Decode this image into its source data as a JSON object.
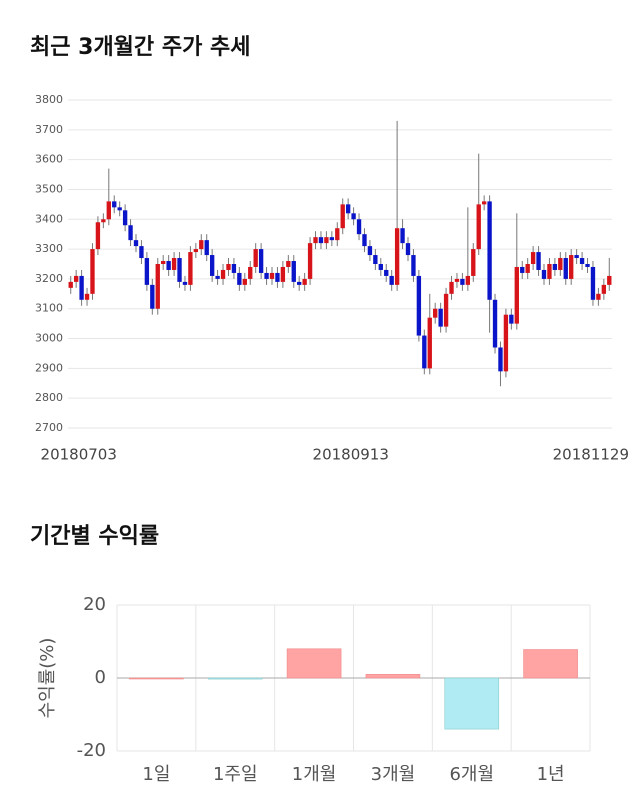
{
  "chart_data": [
    {
      "type": "candlestick",
      "title": "최근 3개월간 주가 추세",
      "categories": [
        "20180703",
        null,
        null,
        null,
        null,
        null,
        null,
        null,
        null,
        null,
        null,
        null,
        null,
        null,
        null,
        null,
        null,
        null,
        null,
        null,
        null,
        null,
        null,
        null,
        null,
        null,
        null,
        null,
        null,
        null,
        null,
        null,
        null,
        null,
        null,
        null,
        null,
        null,
        null,
        null,
        null,
        null,
        null,
        null,
        null,
        null,
        null,
        null,
        null,
        null,
        "20180913",
        null,
        null,
        null,
        null,
        null,
        null,
        null,
        null,
        null,
        null,
        null,
        null,
        null,
        null,
        null,
        null,
        null,
        null,
        null,
        null,
        null,
        null,
        null,
        null,
        null,
        null,
        null,
        null,
        null,
        null,
        null,
        null,
        null,
        null,
        null,
        null,
        null,
        null,
        null,
        null,
        null,
        null,
        null,
        null,
        null,
        null,
        null,
        null,
        "20181129"
      ],
      "open": [
        3170,
        3190,
        3210,
        3130,
        3150,
        3300,
        3390,
        3400,
        3460,
        3440,
        3430,
        3380,
        3330,
        3310,
        3270,
        3180,
        3100,
        3250,
        3260,
        3230,
        3270,
        3190,
        3180,
        3290,
        3300,
        3330,
        3280,
        3210,
        3200,
        3230,
        3250,
        3220,
        3180,
        3200,
        3240,
        3300,
        3220,
        3200,
        3220,
        3190,
        3240,
        3260,
        3190,
        3180,
        3200,
        3320,
        3340,
        3320,
        3340,
        3330,
        3370,
        3450,
        3420,
        3400,
        3350,
        3310,
        3280,
        3250,
        3230,
        3210,
        3180,
        3370,
        3320,
        3280,
        3210,
        3010,
        2900,
        3070,
        3100,
        3040,
        3150,
        3190,
        3200,
        3180,
        3210,
        3300,
        3450,
        3460,
        3130,
        2970,
        2890,
        3080,
        3050,
        3240,
        3220,
        3250,
        3290,
        3230,
        3200,
        3250,
        3230,
        3270,
        3200,
        3280,
        3270,
        3250,
        3240,
        3130,
        3150,
        3180
      ],
      "high": [
        3210,
        3230,
        3230,
        3170,
        3320,
        3410,
        3420,
        3570,
        3480,
        3460,
        3450,
        3400,
        3350,
        3330,
        3290,
        3200,
        3270,
        3280,
        3280,
        3290,
        3290,
        3210,
        3310,
        3320,
        3350,
        3350,
        3300,
        3230,
        3250,
        3270,
        3270,
        3240,
        3220,
        3260,
        3320,
        3320,
        3240,
        3240,
        3240,
        3260,
        3280,
        3280,
        3210,
        3220,
        3340,
        3360,
        3360,
        3360,
        3360,
        3390,
        3470,
        3470,
        3440,
        3420,
        3370,
        3330,
        3300,
        3270,
        3250,
        3230,
        3730,
        3400,
        3340,
        3300,
        3230,
        3030,
        3150,
        3120,
        3120,
        3170,
        3210,
        3220,
        3220,
        3440,
        3320,
        3620,
        3480,
        3480,
        3150,
        2990,
        3100,
        3100,
        3420,
        3260,
        3270,
        3310,
        3310,
        3250,
        3270,
        3270,
        3290,
        3290,
        3300,
        3300,
        3290,
        3270,
        3260,
        3170,
        3200,
        3270
      ],
      "low": [
        3150,
        3170,
        3110,
        3110,
        3130,
        3280,
        3370,
        3380,
        3420,
        3410,
        3360,
        3310,
        3290,
        3250,
        3160,
        3080,
        3080,
        3230,
        3210,
        3210,
        3170,
        3160,
        3160,
        3270,
        3280,
        3260,
        3190,
        3180,
        3180,
        3210,
        3200,
        3160,
        3160,
        3180,
        3220,
        3200,
        3180,
        3180,
        3170,
        3170,
        3220,
        3170,
        3160,
        3160,
        3180,
        3300,
        3300,
        3300,
        3310,
        3310,
        3350,
        3400,
        3380,
        3330,
        3290,
        3260,
        3230,
        3210,
        3190,
        3160,
        3160,
        3300,
        3260,
        3190,
        2990,
        2880,
        2880,
        3050,
        3020,
        3020,
        3130,
        3170,
        3160,
        3160,
        3190,
        3280,
        3430,
        3020,
        2950,
        2840,
        2870,
        3030,
        3030,
        3200,
        3200,
        3230,
        3210,
        3180,
        3180,
        3210,
        3210,
        3180,
        3180,
        3250,
        3230,
        3220,
        3110,
        3110,
        3130,
        3160
      ],
      "close": [
        3190,
        3210,
        3130,
        3150,
        3300,
        3390,
        3400,
        3460,
        3440,
        3430,
        3380,
        3330,
        3310,
        3270,
        3180,
        3100,
        3250,
        3260,
        3230,
        3270,
        3190,
        3180,
        3290,
        3300,
        3330,
        3280,
        3210,
        3200,
        3230,
        3250,
        3220,
        3180,
        3200,
        3240,
        3300,
        3220,
        3200,
        3220,
        3190,
        3240,
        3260,
        3190,
        3180,
        3200,
        3320,
        3340,
        3320,
        3340,
        3330,
        3370,
        3450,
        3420,
        3400,
        3350,
        3310,
        3280,
        3250,
        3230,
        3210,
        3180,
        3370,
        3320,
        3280,
        3210,
        3010,
        2900,
        3070,
        3100,
        3040,
        3150,
        3190,
        3200,
        3180,
        3210,
        3300,
        3450,
        3460,
        3130,
        2970,
        2890,
        3080,
        3050,
        3240,
        3220,
        3250,
        3290,
        3230,
        3200,
        3250,
        3230,
        3270,
        3200,
        3280,
        3270,
        3250,
        3240,
        3130,
        3150,
        3180,
        3210
      ],
      "up_color": "#d7141a",
      "down_color": "#0a14c8",
      "ylim": [
        2700,
        3800
      ],
      "yticks": [
        2700,
        2800,
        2900,
        3000,
        3100,
        3200,
        3300,
        3400,
        3500,
        3600,
        3700,
        3800
      ],
      "grid": true
    },
    {
      "type": "bar",
      "title": "기간별 수익률",
      "ylabel": "수익률(%)",
      "categories": [
        "1일",
        "1주일",
        "1개월",
        "3개월",
        "6개월",
        "1년"
      ],
      "values": [
        0,
        -0.3,
        8,
        1,
        -14,
        7.8
      ],
      "positive_color": "#ffa3a3",
      "negative_color": "#b0eaf2",
      "ylim": [
        -20,
        20
      ],
      "yticks": [
        -20,
        0,
        20
      ],
      "grid": true
    }
  ]
}
